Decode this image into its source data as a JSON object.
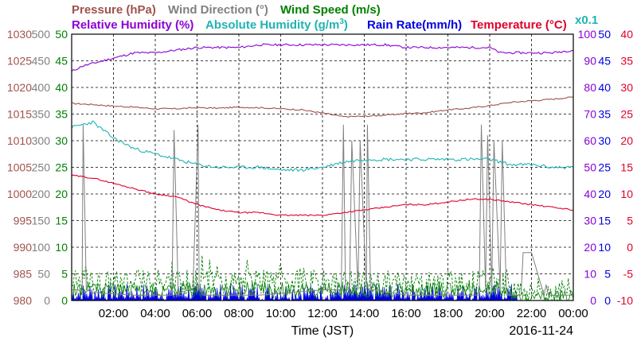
{
  "chart_data": {
    "type": "line",
    "xlabel": "Time (JST)",
    "date_label": "2016-11-24",
    "x_ticks": [
      "02:00",
      "04:00",
      "06:00",
      "08:00",
      "10:00",
      "12:00",
      "14:00",
      "16:00",
      "18:00",
      "20:00",
      "22:00",
      "00:00"
    ],
    "x_range_hours": [
      0,
      24
    ],
    "legend": {
      "pressure": "Pressure (hPa)",
      "wind_direction": "Wind Direction (°)",
      "wind_speed": "Wind Speed (m/s)",
      "relative_humidity": "Relative Humidity (%)",
      "absolute_humidity_pre": "Absolute Humidity (g/m",
      "absolute_humidity_sup": "3",
      "absolute_humidity_post": ")",
      "rain_rate": "Rain Rate(mm/h)",
      "temperature": "Temperature (°C)",
      "scale_note": "x0.1"
    },
    "axes": {
      "pressure": {
        "ticks": [
          "1030",
          "1025",
          "1020",
          "1015",
          "1010",
          "1005",
          "1000",
          "995",
          "990",
          "985",
          "980"
        ],
        "range": [
          980,
          1030
        ]
      },
      "wind_direction": {
        "ticks": [
          "500",
          "450",
          "400",
          "350",
          "300",
          "250",
          "200",
          "150",
          "100",
          "50",
          "0"
        ],
        "range": [
          0,
          500
        ]
      },
      "wind_speed": {
        "ticks": [
          "50",
          "45",
          "40",
          "35",
          "30",
          "25",
          "20",
          "15",
          "10",
          "5",
          "0"
        ],
        "range": [
          0,
          50
        ]
      },
      "relative_humidity": {
        "ticks": [
          "100",
          "90",
          "80",
          "70",
          "60",
          "50",
          "40",
          "30",
          "20",
          "10",
          "0"
        ],
        "range": [
          0,
          100
        ]
      },
      "rain_rate": {
        "ticks": [
          "50",
          "45",
          "40",
          "35",
          "30",
          "25",
          "20",
          "15",
          "10",
          "5",
          "0"
        ],
        "range": [
          0,
          50
        ]
      },
      "temperature": {
        "ticks": [
          "40",
          "35",
          "30",
          "25",
          "20",
          "15",
          "10",
          "5",
          "0",
          "-5",
          "-10"
        ],
        "range": [
          -10,
          40
        ]
      }
    },
    "colors": {
      "pressure": "#a0524d",
      "wind_direction": "#808080",
      "wind_speed": "#008000",
      "relative_humidity": "#8b00d6",
      "absolute_humidity": "#1fb3b3",
      "rain_rate": "#0000e0",
      "temperature": "#e0002a"
    },
    "series": [
      {
        "name": "Pressure (hPa)",
        "key": "pressure",
        "x": [
          0,
          1,
          2,
          3,
          4,
          5,
          6,
          7,
          8,
          9,
          10,
          11,
          12,
          13,
          14,
          15,
          16,
          17,
          18,
          19,
          20,
          21,
          22,
          23,
          24
        ],
        "y": [
          1017,
          1016.8,
          1016.5,
          1016.3,
          1016,
          1016,
          1016.2,
          1016.1,
          1016.3,
          1016.2,
          1016,
          1015.8,
          1015.2,
          1014.5,
          1014.6,
          1014.8,
          1015.1,
          1015.3,
          1015.8,
          1016.1,
          1016.6,
          1017.2,
          1017.5,
          1017.8,
          1018.2
        ]
      },
      {
        "name": "Relative Humidity (%)",
        "key": "relative_humidity",
        "x": [
          0,
          0.5,
          1,
          1.5,
          2,
          3,
          4,
          5,
          6,
          7,
          8,
          9,
          10,
          11,
          12,
          13,
          14,
          15,
          16,
          17,
          18,
          19,
          20,
          20.5,
          21,
          22,
          23,
          24
        ],
        "y": [
          86,
          88,
          89,
          90,
          91,
          93,
          93,
          94,
          95,
          95,
          95,
          96,
          96,
          96,
          96,
          96,
          96,
          96,
          95,
          95,
          95,
          95,
          95,
          93,
          93,
          93,
          93,
          94
        ]
      },
      {
        "name": "Absolute Humidity (g/m3)",
        "key": "absolute_humidity",
        "x": [
          0,
          0.5,
          1,
          1.5,
          2,
          3,
          4,
          4.5,
          5,
          5.5,
          6,
          7,
          8,
          9,
          10,
          11,
          12,
          13,
          14,
          15,
          16,
          17,
          18,
          19,
          20,
          21,
          22,
          23,
          24
        ],
        "y": [
          65,
          66,
          67,
          64,
          61,
          57,
          55,
          54,
          53,
          52,
          51,
          50,
          50,
          50,
          49,
          49,
          50,
          52,
          53,
          53,
          53,
          53,
          53,
          53,
          53,
          51,
          51,
          50,
          50
        ]
      },
      {
        "name": "Temperature (°C)",
        "key": "temperature",
        "x": [
          0,
          1,
          2,
          3,
          4,
          5,
          6,
          7,
          8,
          9,
          10,
          11,
          12,
          13,
          14,
          15,
          16,
          17,
          18,
          19,
          20,
          21,
          22,
          23,
          24
        ],
        "y": [
          13.5,
          13,
          12,
          11,
          10,
          9.5,
          8,
          7,
          6.5,
          6.5,
          6,
          6,
          6,
          6.5,
          7,
          7.5,
          8,
          8,
          8.5,
          9,
          9,
          8.5,
          8,
          7.5,
          7
        ]
      },
      {
        "name": "Wind Direction (°)",
        "key": "wind_direction",
        "x": [
          0,
          0.3,
          0.5,
          0.55,
          0.7,
          1,
          3,
          4.8,
          4.9,
          5.1,
          5.2,
          5.6,
          5.8,
          6.05,
          6.1,
          6.3,
          6.5,
          9,
          12,
          12.9,
          13,
          13.1,
          13.3,
          13.4,
          13.7,
          13.8,
          14.1,
          14.15,
          14.3,
          14.6,
          16,
          18,
          19.5,
          19.6,
          19.8,
          19.9,
          20.1,
          20.2,
          20.5,
          20.6,
          20.8,
          21.5,
          21.6,
          21.8,
          22,
          22.6,
          22.7,
          22.8,
          23,
          24
        ],
        "y": [
          20,
          20,
          15,
          330,
          20,
          15,
          10,
          10,
          320,
          10,
          15,
          20,
          20,
          330,
          20,
          10,
          10,
          10,
          20,
          20,
          330,
          20,
          20,
          300,
          20,
          300,
          20,
          330,
          20,
          20,
          10,
          10,
          10,
          330,
          20,
          310,
          20,
          300,
          20,
          300,
          10,
          10,
          90,
          90,
          90,
          10,
          30,
          10,
          10,
          10
        ]
      },
      {
        "name": "Wind Speed (m/s)",
        "key": "wind_speed",
        "values_note": "fluctuating 0 to about 7",
        "x": [
          0,
          2,
          4,
          6,
          8,
          10,
          12,
          14,
          16,
          18,
          20,
          22,
          24
        ],
        "y": [
          2,
          3,
          2,
          4,
          3,
          2,
          3,
          3,
          2,
          2,
          3,
          2,
          1
        ]
      },
      {
        "name": "Rain Rate(mm/h)",
        "key": "rain_rate",
        "values_note": "dense spikes 0 to about 3",
        "x": [
          0,
          2,
          4,
          6,
          8,
          10,
          12,
          14,
          16,
          18,
          20,
          22,
          24
        ],
        "y": [
          2,
          3,
          2,
          3,
          2,
          2,
          3,
          2,
          2,
          2,
          2,
          0.5,
          0
        ]
      }
    ]
  }
}
